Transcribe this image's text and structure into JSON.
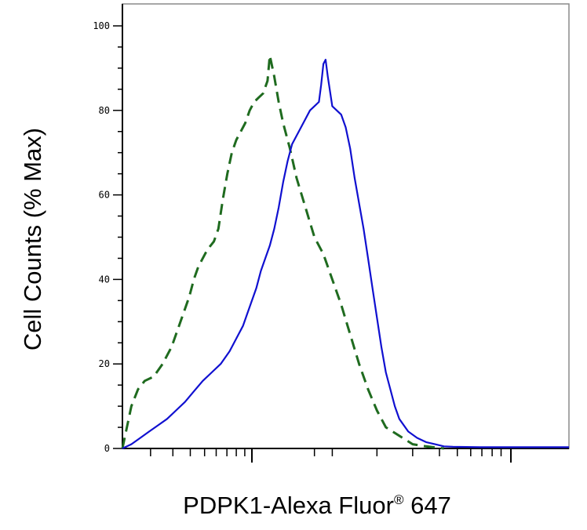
{
  "chart_data": {
    "type": "line",
    "xlabel": {
      "main": "PDPK1-Alexa Fluor",
      "sup": "®",
      "suffix": " 647"
    },
    "ylabel": "Cell Counts (% Max)",
    "ylim": [
      0,
      100
    ],
    "y_ticks": [
      "0",
      "20",
      "40",
      "60",
      "80",
      "100"
    ],
    "x_scale": "log",
    "xlim": [
      0,
      1
    ],
    "x_major_ticks": [
      0.29,
      0.87
    ],
    "x_minor_ticks": [
      0.063,
      0.113,
      0.152,
      0.184,
      0.21,
      0.234,
      0.255,
      0.274,
      0.43,
      0.47,
      0.57,
      0.65,
      0.71,
      0.75,
      0.78,
      0.805,
      0.828,
      0.848
    ],
    "series": [
      {
        "style": "dashed",
        "color": "#1f6b1f",
        "points": [
          [
            0.0,
            0
          ],
          [
            0.01,
            5
          ],
          [
            0.02,
            10
          ],
          [
            0.035,
            14
          ],
          [
            0.05,
            16
          ],
          [
            0.07,
            17
          ],
          [
            0.09,
            20
          ],
          [
            0.11,
            24
          ],
          [
            0.13,
            30
          ],
          [
            0.15,
            36
          ],
          [
            0.16,
            40
          ],
          [
            0.17,
            43
          ],
          [
            0.19,
            47
          ],
          [
            0.205,
            49
          ],
          [
            0.215,
            52
          ],
          [
            0.225,
            59
          ],
          [
            0.235,
            65
          ],
          [
            0.245,
            70
          ],
          [
            0.255,
            73
          ],
          [
            0.265,
            75
          ],
          [
            0.275,
            77
          ],
          [
            0.285,
            80
          ],
          [
            0.295,
            82
          ],
          [
            0.305,
            83
          ],
          [
            0.315,
            84
          ],
          [
            0.325,
            87
          ],
          [
            0.33,
            93
          ],
          [
            0.34,
            88
          ],
          [
            0.35,
            82
          ],
          [
            0.36,
            77
          ],
          [
            0.375,
            71
          ],
          [
            0.39,
            64
          ],
          [
            0.41,
            57
          ],
          [
            0.43,
            50
          ],
          [
            0.45,
            46
          ],
          [
            0.47,
            40
          ],
          [
            0.49,
            34
          ],
          [
            0.51,
            27
          ],
          [
            0.53,
            20
          ],
          [
            0.55,
            14
          ],
          [
            0.57,
            9
          ],
          [
            0.59,
            5
          ],
          [
            0.62,
            3
          ],
          [
            0.65,
            1
          ],
          [
            0.68,
            0.5
          ],
          [
            0.72,
            0
          ]
        ]
      },
      {
        "style": "solid",
        "color": "#1010d0",
        "points": [
          [
            0.0,
            0
          ],
          [
            0.02,
            1
          ],
          [
            0.04,
            2.5
          ],
          [
            0.06,
            4
          ],
          [
            0.08,
            5.5
          ],
          [
            0.1,
            7
          ],
          [
            0.12,
            9
          ],
          [
            0.14,
            11
          ],
          [
            0.16,
            13.5
          ],
          [
            0.18,
            16
          ],
          [
            0.2,
            18
          ],
          [
            0.22,
            20
          ],
          [
            0.24,
            23
          ],
          [
            0.26,
            27
          ],
          [
            0.27,
            29
          ],
          [
            0.28,
            32
          ],
          [
            0.29,
            35
          ],
          [
            0.3,
            38
          ],
          [
            0.31,
            42
          ],
          [
            0.32,
            45
          ],
          [
            0.33,
            48
          ],
          [
            0.34,
            52
          ],
          [
            0.35,
            57
          ],
          [
            0.36,
            63
          ],
          [
            0.37,
            68
          ],
          [
            0.38,
            72
          ],
          [
            0.39,
            74
          ],
          [
            0.4,
            76
          ],
          [
            0.41,
            78
          ],
          [
            0.42,
            80
          ],
          [
            0.43,
            81
          ],
          [
            0.44,
            82
          ],
          [
            0.445,
            86
          ],
          [
            0.45,
            91
          ],
          [
            0.455,
            92
          ],
          [
            0.46,
            88
          ],
          [
            0.47,
            81
          ],
          [
            0.48,
            80
          ],
          [
            0.49,
            79
          ],
          [
            0.5,
            76
          ],
          [
            0.51,
            71
          ],
          [
            0.52,
            64
          ],
          [
            0.53,
            58
          ],
          [
            0.54,
            52
          ],
          [
            0.55,
            45
          ],
          [
            0.56,
            38
          ],
          [
            0.57,
            31
          ],
          [
            0.58,
            24
          ],
          [
            0.59,
            18
          ],
          [
            0.6,
            14
          ],
          [
            0.61,
            10
          ],
          [
            0.62,
            7
          ],
          [
            0.64,
            4
          ],
          [
            0.66,
            2.5
          ],
          [
            0.68,
            1.5
          ],
          [
            0.7,
            1
          ],
          [
            0.72,
            0.5
          ],
          [
            0.74,
            0.4
          ],
          [
            0.8,
            0.3
          ],
          [
            0.9,
            0.3
          ],
          [
            1.0,
            0.3
          ]
        ]
      }
    ]
  },
  "colors": {
    "dashed_series": "#1f6b1f",
    "solid_series": "#1010d0",
    "frame": "#8a8a8a",
    "axis": "#000000"
  }
}
